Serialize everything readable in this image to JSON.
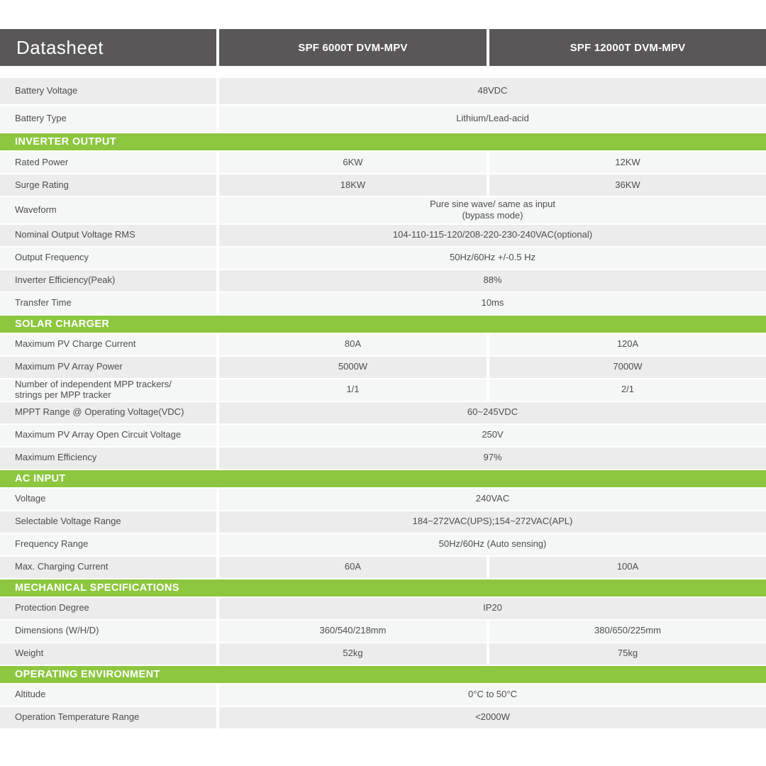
{
  "colors": {
    "header_bg": "#595757",
    "green": "#8dc63f",
    "row_gray": "#ebeceb",
    "row_light": "#f5f6f6",
    "text": "#4d4d4f"
  },
  "header": {
    "title": "Datasheet",
    "product1": "SPF 6000T DVM-MPV",
    "product2": "SPF 12000T DVM-MPV"
  },
  "sections": [
    {
      "title": "",
      "rows": [
        {
          "label": "Battery Voltage",
          "span": true,
          "value": "48VDC",
          "shade": "gray"
        },
        {
          "label": "Battery Type",
          "span": true,
          "value": "Lithium/Lead-acid",
          "shade": "light"
        }
      ]
    },
    {
      "title": "INVERTER OUTPUT",
      "rows": [
        {
          "label": "Rated Power",
          "span": false,
          "value1": "6KW",
          "value2": "12KW",
          "shade": "light"
        },
        {
          "label": "Surge Rating",
          "span": false,
          "value1": "18KW",
          "value2": "36KW",
          "shade": "gray"
        },
        {
          "label": "Waveform",
          "span": true,
          "value": "Pure sine wave/ same as input\n(bypass mode)",
          "shade": "light"
        },
        {
          "label": "Nominal Output Voltage RMS",
          "span": true,
          "value": "104-110-115-120/208-220-230-240VAC(optional)",
          "shade": "gray"
        },
        {
          "label": "Output Frequency",
          "span": true,
          "value": "50Hz/60Hz +/-0.5 Hz",
          "shade": "light"
        },
        {
          "label": "Inverter Efficiency(Peak)",
          "span": true,
          "value": "88%",
          "shade": "gray"
        },
        {
          "label": "Transfer Time",
          "span": true,
          "value": "10ms",
          "shade": "light"
        }
      ]
    },
    {
      "title": "SOLAR CHARGER",
      "rows": [
        {
          "label": "Maximum PV Charge Current",
          "span": false,
          "value1": "80A",
          "value2": "120A",
          "shade": "light"
        },
        {
          "label": "Maximum PV Array Power",
          "span": false,
          "value1": "5000W",
          "value2": "7000W",
          "shade": "gray"
        },
        {
          "label": "Number of independent MPP trackers/\nstrings per MPP tracker",
          "span": false,
          "value1": "1/1",
          "value2": "2/1",
          "shade": "light"
        },
        {
          "label": "MPPT Range @ Operating Voltage(VDC)",
          "span": true,
          "value": "60~245VDC",
          "shade": "gray"
        },
        {
          "label": "Maximum PV Array Open Circuit Voltage",
          "span": true,
          "value": "250V",
          "shade": "light"
        },
        {
          "label": "Maximum Efficiency",
          "span": true,
          "value": "97%",
          "shade": "gray"
        }
      ]
    },
    {
      "title": "AC INPUT",
      "rows": [
        {
          "label": "Voltage",
          "span": true,
          "value": "240VAC",
          "shade": "light"
        },
        {
          "label": "Selectable Voltage Range",
          "span": true,
          "value": "184~272VAC(UPS);154~272VAC(APL)",
          "shade": "gray"
        },
        {
          "label": "Frequency Range",
          "span": true,
          "value": "50Hz/60Hz (Auto sensing)",
          "shade": "light"
        },
        {
          "label": "Max. Charging Current",
          "span": false,
          "value1": "60A",
          "value2": "100A",
          "shade": "gray"
        }
      ]
    },
    {
      "title": "MECHANICAL SPECIFICATIONS",
      "rows": [
        {
          "label": "Protection Degree",
          "span": true,
          "value": "IP20",
          "shade": "gray"
        },
        {
          "label": "Dimensions (W/H/D)",
          "span": false,
          "value1": "360/540/218mm",
          "value2": "380/650/225mm",
          "shade": "light"
        },
        {
          "label": "Weight",
          "span": false,
          "value1": "52kg",
          "value2": "75kg",
          "shade": "gray"
        }
      ]
    },
    {
      "title": "OPERATING ENVIRONMENT",
      "rows": [
        {
          "label": "Altitude",
          "span": true,
          "value": "0°C to 50°C",
          "shade": "light"
        },
        {
          "label": "Operation Temperature Range",
          "span": true,
          "value": "<2000W",
          "shade": "gray"
        }
      ]
    }
  ]
}
